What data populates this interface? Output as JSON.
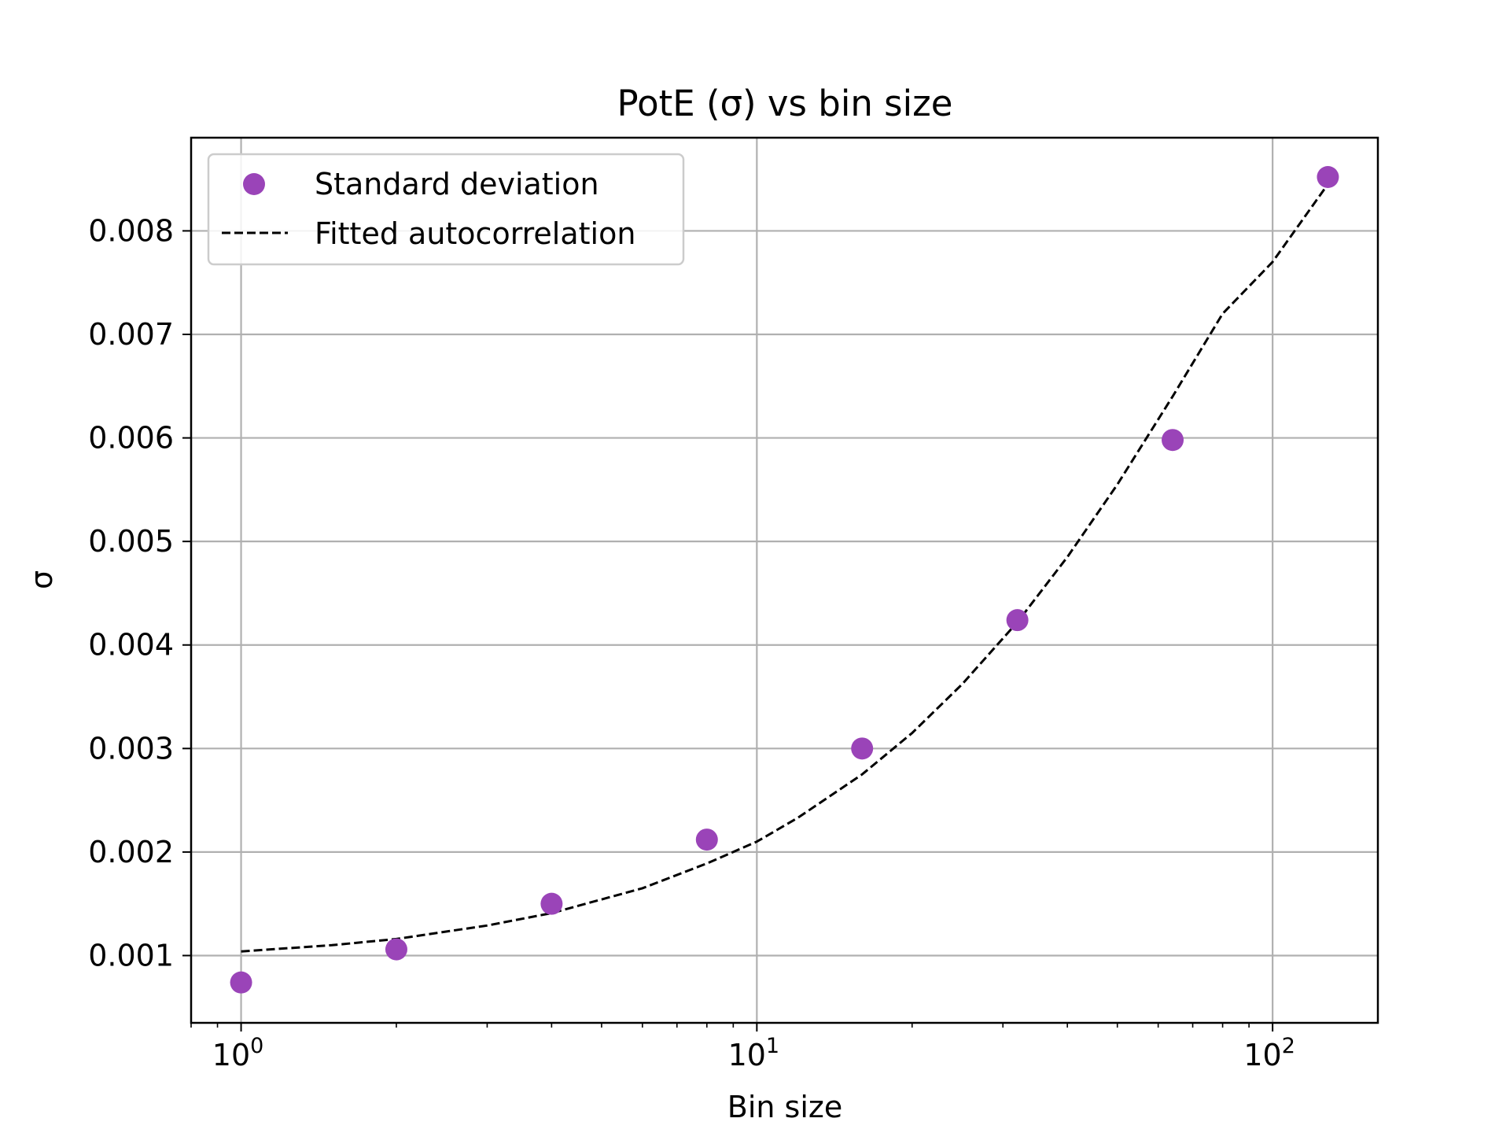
{
  "chart_data": {
    "type": "scatter",
    "title": "PotE (σ) vs bin size",
    "xlabel": "Bin size",
    "ylabel": "σ",
    "xscale": "log",
    "xlim": [
      0.8,
      160
    ],
    "ylim": [
      0.00035,
      0.0089
    ],
    "grid": true,
    "legend_position": "top-left",
    "x_ticks": [
      {
        "base": "10",
        "exp": "0",
        "value": 1
      },
      {
        "base": "10",
        "exp": "1",
        "value": 10
      },
      {
        "base": "10",
        "exp": "2",
        "value": 100
      }
    ],
    "y_ticks": [
      {
        "label": "0.001",
        "value": 0.001
      },
      {
        "label": "0.002",
        "value": 0.002
      },
      {
        "label": "0.003",
        "value": 0.003
      },
      {
        "label": "0.004",
        "value": 0.004
      },
      {
        "label": "0.005",
        "value": 0.005
      },
      {
        "label": "0.006",
        "value": 0.006
      },
      {
        "label": "0.007",
        "value": 0.007
      },
      {
        "label": "0.008",
        "value": 0.008
      }
    ],
    "series": [
      {
        "name": "Standard deviation",
        "kind": "scatter",
        "color": "#9a44b8",
        "x": [
          1,
          2,
          4,
          8,
          16,
          32,
          64,
          128
        ],
        "y": [
          0.00074,
          0.00106,
          0.0015,
          0.00212,
          0.003,
          0.00424,
          0.00598,
          0.00852
        ]
      },
      {
        "name": "Fitted autocorrelation",
        "kind": "line",
        "color": "#000000",
        "style": "dashed",
        "x": [
          1,
          1.5,
          2,
          3,
          4,
          6,
          8,
          10,
          12,
          16,
          20,
          25,
          32,
          40,
          50,
          64,
          80,
          100,
          128
        ],
        "y": [
          0.00104,
          0.0011,
          0.00116,
          0.00129,
          0.00141,
          0.00165,
          0.00189,
          0.0021,
          0.00233,
          0.00275,
          0.00315,
          0.00362,
          0.00422,
          0.00485,
          0.00555,
          0.0064,
          0.0072,
          0.0077,
          0.00845
        ]
      }
    ]
  }
}
